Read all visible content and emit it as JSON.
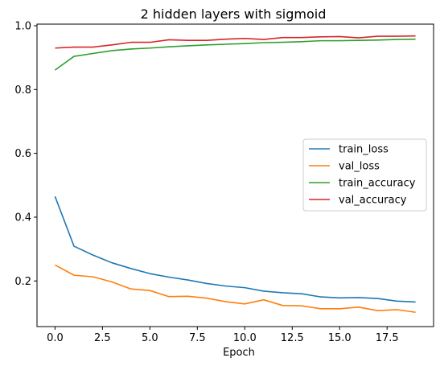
{
  "chart_data": {
    "type": "line",
    "title": "2 hidden layers with sigmoid",
    "xlabel": "Epoch",
    "ylabel": "",
    "xlim": [
      -0.95,
      19.95
    ],
    "ylim": [
      0.057,
      1.005
    ],
    "xticks": [
      0.0,
      2.5,
      5.0,
      7.5,
      10.0,
      12.5,
      15.0,
      17.5
    ],
    "xtick_labels": [
      "0.0",
      "2.5",
      "5.0",
      "7.5",
      "10.0",
      "12.5",
      "15.0",
      "17.5"
    ],
    "yticks": [
      0.2,
      0.4,
      0.6,
      0.8,
      1.0
    ],
    "ytick_labels": [
      "0.2",
      "0.4",
      "0.6",
      "0.8",
      "1.0"
    ],
    "grid": false,
    "legend_position": "center-right",
    "x": [
      0,
      1,
      2,
      3,
      4,
      5,
      6,
      7,
      8,
      9,
      10,
      11,
      12,
      13,
      14,
      15,
      16,
      17,
      18,
      19
    ],
    "series": [
      {
        "name": "train_loss",
        "color": "#1f77b4",
        "values": [
          0.465,
          0.309,
          0.281,
          0.257,
          0.239,
          0.223,
          0.212,
          0.203,
          0.192,
          0.184,
          0.179,
          0.168,
          0.163,
          0.16,
          0.15,
          0.147,
          0.148,
          0.145,
          0.137,
          0.134
        ]
      },
      {
        "name": "val_loss",
        "color": "#ff7f0e",
        "values": [
          0.25,
          0.218,
          0.213,
          0.197,
          0.175,
          0.17,
          0.151,
          0.152,
          0.146,
          0.135,
          0.128,
          0.141,
          0.123,
          0.122,
          0.113,
          0.113,
          0.118,
          0.107,
          0.11,
          0.102
        ]
      },
      {
        "name": "train_accuracy",
        "color": "#2ca02c",
        "values": [
          0.861,
          0.904,
          0.913,
          0.922,
          0.927,
          0.93,
          0.934,
          0.937,
          0.94,
          0.942,
          0.944,
          0.947,
          0.948,
          0.95,
          0.953,
          0.953,
          0.954,
          0.955,
          0.957,
          0.958
        ]
      },
      {
        "name": "val_accuracy",
        "color": "#d62728",
        "values": [
          0.93,
          0.933,
          0.933,
          0.94,
          0.948,
          0.948,
          0.956,
          0.954,
          0.954,
          0.958,
          0.96,
          0.957,
          0.963,
          0.963,
          0.965,
          0.966,
          0.962,
          0.967,
          0.967,
          0.968
        ]
      }
    ]
  }
}
